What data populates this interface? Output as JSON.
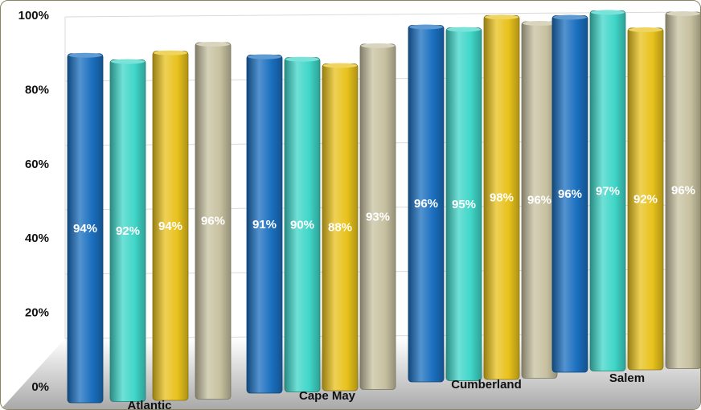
{
  "chart_data": {
    "type": "bar",
    "categories": [
      "Atlantic",
      "Cape May",
      "Cumberland",
      "Salem"
    ],
    "series": [
      {
        "values": [
          94,
          91,
          96,
          96
        ],
        "color": "#1a6fbf"
      },
      {
        "values": [
          92,
          90,
          95,
          97
        ],
        "color": "#3fd6c8"
      },
      {
        "values": [
          94,
          88,
          98,
          92
        ],
        "color": "#e8c21c"
      },
      {
        "values": [
          96,
          93,
          96,
          96
        ],
        "color": "#c7c1a0"
      }
    ],
    "data_labels": [
      [
        "94%",
        "91%",
        "96%",
        "96%"
      ],
      [
        "92%",
        "90%",
        "95%",
        "97%"
      ],
      [
        "94%",
        "88%",
        "98%",
        "92%"
      ],
      [
        "96%",
        "93%",
        "96%",
        "96%"
      ]
    ],
    "y_ticks": [
      "0%",
      "20%",
      "40%",
      "60%",
      "80%",
      "100%"
    ],
    "ylim": [
      0,
      100
    ],
    "grid": true,
    "legend": "none",
    "style": "3d-perspective"
  }
}
